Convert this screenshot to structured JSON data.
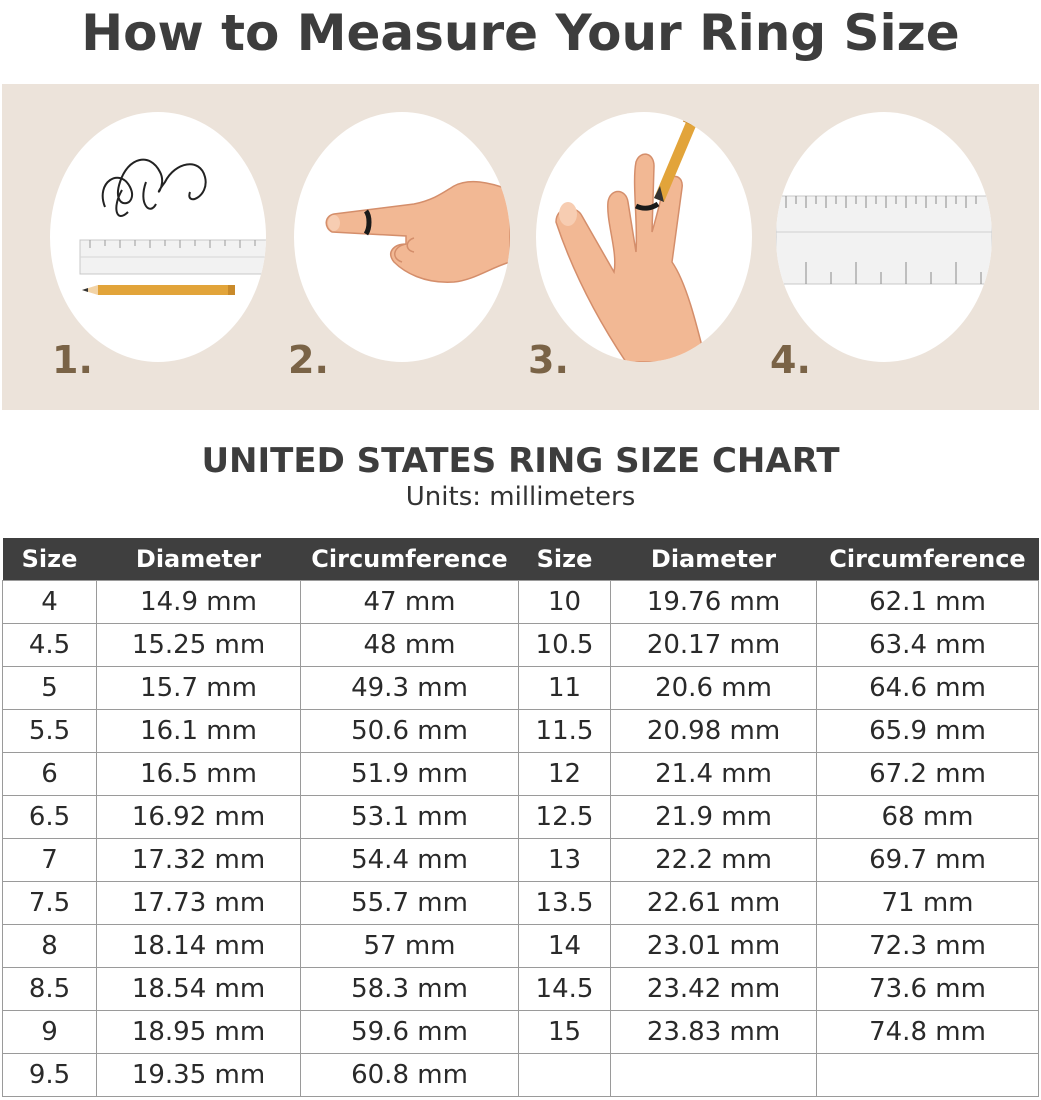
{
  "title": "How to Measure Your Ring Size",
  "steps": [
    {
      "number": "1.",
      "icon": "string-ruler-pencil-icon"
    },
    {
      "number": "2.",
      "icon": "finger-wrapped-string-icon"
    },
    {
      "number": "3.",
      "icon": "mark-string-with-pencil-icon"
    },
    {
      "number": "4.",
      "icon": "measure-on-ruler-icon"
    }
  ],
  "chart": {
    "title": "UNITED STATES RING SIZE CHART",
    "units": "Units: millimeters",
    "headers": [
      "Size",
      "Diameter",
      "Circumference",
      "Size",
      "Diameter",
      "Circumference"
    ],
    "rows": [
      [
        "4",
        "14.9 mm",
        "47 mm",
        "10",
        "19.76 mm",
        "62.1 mm"
      ],
      [
        "4.5",
        "15.25 mm",
        "48 mm",
        "10.5",
        "20.17 mm",
        "63.4 mm"
      ],
      [
        "5",
        "15.7 mm",
        "49.3 mm",
        "11",
        "20.6 mm",
        "64.6 mm"
      ],
      [
        "5.5",
        "16.1 mm",
        "50.6 mm",
        "11.5",
        "20.98 mm",
        "65.9 mm"
      ],
      [
        "6",
        "16.5 mm",
        "51.9 mm",
        "12",
        "21.4 mm",
        "67.2 mm"
      ],
      [
        "6.5",
        "16.92 mm",
        "53.1 mm",
        "12.5",
        "21.9 mm",
        "68 mm"
      ],
      [
        "7",
        "17.32 mm",
        "54.4 mm",
        "13",
        "22.2 mm",
        "69.7 mm"
      ],
      [
        "7.5",
        "17.73 mm",
        "55.7 mm",
        "13.5",
        "22.61 mm",
        "71 mm"
      ],
      [
        "8",
        "18.14 mm",
        "57 mm",
        "14",
        "23.01 mm",
        "72.3 mm"
      ],
      [
        "8.5",
        "18.54 mm",
        "58.3 mm",
        "14.5",
        "23.42 mm",
        "73.6 mm"
      ],
      [
        "9",
        "18.95 mm",
        "59.6 mm",
        "15",
        "23.83 mm",
        "74.8 mm"
      ],
      [
        "9.5",
        "19.35 mm",
        "60.8 mm",
        "",
        "",
        ""
      ]
    ]
  },
  "colors": {
    "panel_background": "#ece3da",
    "step_number": "#7a6346",
    "table_header": "#3f3f3f",
    "grid_line": "#9a9a9a",
    "pencil": "#e2a43a",
    "skin": "#f2b894"
  }
}
